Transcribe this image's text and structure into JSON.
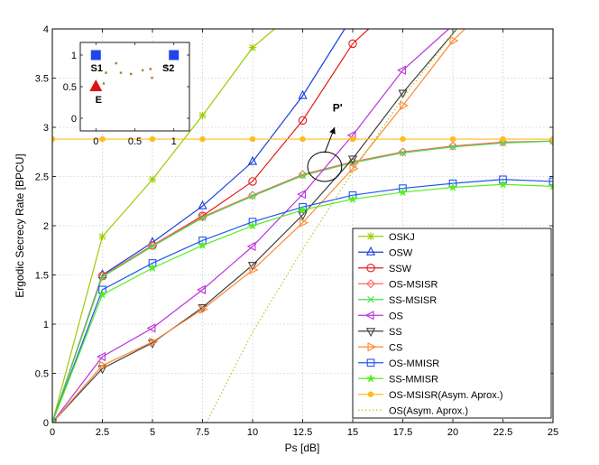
{
  "chart_data": {
    "type": "line",
    "title": "",
    "xlabel": "Ps [dB]",
    "ylabel": "Ergodic Secrecy Rate [BPCU]",
    "xlim": [
      0,
      25
    ],
    "ylim": [
      0,
      4
    ],
    "grid": true,
    "legend_position": "bottom-right",
    "xticks": [
      0,
      2.5,
      5,
      7.5,
      10,
      12.5,
      15,
      17.5,
      20,
      22.5,
      25
    ],
    "xtick_labels": [
      "0",
      "2.5",
      "5",
      "7.5",
      "10",
      "12.5",
      "15",
      "17.5",
      "20",
      "22.5",
      "25"
    ],
    "yticks": [
      0,
      0.5,
      1,
      1.5,
      2,
      2.5,
      3,
      3.5,
      4
    ],
    "ytick_labels": [
      "0",
      "0.5",
      "1",
      "1.5",
      "2",
      "2.5",
      "3",
      "3.5",
      "4"
    ],
    "series": [
      {
        "name": "OSKJ",
        "color": "#99cc00",
        "marker": "asterisk",
        "x": [
          0,
          2.5,
          5,
          7.5,
          10,
          11.1
        ],
        "y": [
          0,
          1.89,
          2.47,
          3.12,
          3.81,
          4.0
        ]
      },
      {
        "name": "OSW",
        "color": "#1a3fd9",
        "marker": "triangle-up",
        "x": [
          0,
          2.5,
          5,
          7.5,
          10,
          12.5,
          14.6
        ],
        "y": [
          0,
          1.5,
          1.83,
          2.2,
          2.65,
          3.32,
          4.0
        ]
      },
      {
        "name": "SSW",
        "color": "#e31a1a",
        "marker": "circle",
        "x": [
          0,
          2.5,
          5,
          7.5,
          10,
          12.5,
          15,
          15.8
        ],
        "y": [
          0,
          1.49,
          1.8,
          2.1,
          2.45,
          3.07,
          3.85,
          4.0
        ]
      },
      {
        "name": "OS-MSISR",
        "color": "#ff6666",
        "marker": "diamond",
        "x": [
          0,
          2.5,
          5,
          7.5,
          10,
          12.5,
          15,
          17.5,
          20,
          22.5,
          25
        ],
        "y": [
          0,
          1.49,
          1.8,
          2.09,
          2.31,
          2.52,
          2.65,
          2.75,
          2.81,
          2.85,
          2.86
        ]
      },
      {
        "name": "SS-MSISR",
        "color": "#44dd44",
        "marker": "x",
        "x": [
          0,
          2.5,
          5,
          7.5,
          10,
          12.5,
          15,
          17.5,
          20,
          22.5,
          25
        ],
        "y": [
          0,
          1.48,
          1.79,
          2.08,
          2.3,
          2.51,
          2.64,
          2.74,
          2.8,
          2.84,
          2.86
        ]
      },
      {
        "name": "OS",
        "color": "#bb33dd",
        "marker": "triangle-left",
        "x": [
          0,
          2.5,
          5,
          7.5,
          10,
          12.5,
          15,
          17.5,
          19.8
        ],
        "y": [
          0,
          0.67,
          0.96,
          1.35,
          1.79,
          2.32,
          2.92,
          3.58,
          4.0
        ]
      },
      {
        "name": "SS",
        "color": "#404040",
        "marker": "triangle-down",
        "x": [
          0,
          2.5,
          5,
          7.5,
          10,
          12.5,
          15,
          17.5,
          20.2
        ],
        "y": [
          0,
          0.55,
          0.81,
          1.17,
          1.6,
          2.11,
          2.68,
          3.35,
          4.0
        ]
      },
      {
        "name": "CS",
        "color": "#ff8833",
        "marker": "triangle-right",
        "x": [
          0,
          2.5,
          5,
          7.5,
          10,
          12.5,
          15,
          17.5,
          20,
          20.6
        ],
        "y": [
          0,
          0.58,
          0.82,
          1.15,
          1.55,
          2.03,
          2.58,
          3.22,
          3.88,
          4.0
        ]
      },
      {
        "name": "OS-MMISR",
        "color": "#2255ee",
        "marker": "square",
        "x": [
          0,
          2.5,
          5,
          7.5,
          10,
          12.5,
          15,
          17.5,
          20,
          22.5,
          25
        ],
        "y": [
          0,
          1.35,
          1.62,
          1.85,
          2.04,
          2.19,
          2.31,
          2.38,
          2.43,
          2.47,
          2.45
        ]
      },
      {
        "name": "SS-MMISR",
        "color": "#55ee22",
        "marker": "star",
        "x": [
          0,
          2.5,
          5,
          7.5,
          10,
          12.5,
          15,
          17.5,
          20,
          22.5,
          25
        ],
        "y": [
          0,
          1.3,
          1.57,
          1.8,
          2.0,
          2.16,
          2.27,
          2.34,
          2.39,
          2.42,
          2.4
        ]
      },
      {
        "name": "OS-MSISR(Asym. Aprox.)",
        "color": "#ffbb22",
        "marker": "dot",
        "x": [
          0,
          2.5,
          5,
          7.5,
          10,
          12.5,
          15,
          17.5,
          20,
          22.5,
          25
        ],
        "y": [
          2.88,
          2.88,
          2.88,
          2.88,
          2.88,
          2.88,
          2.88,
          2.88,
          2.88,
          2.88,
          2.88
        ]
      },
      {
        "name": "OS(Asym. Aprox.)",
        "color": "#aacc22",
        "marker": "none",
        "dash": "dotted",
        "x": [
          7.7,
          10,
          12.5,
          15,
          17.5,
          20.2
        ],
        "y": [
          0,
          0.92,
          1.76,
          2.55,
          3.3,
          4.0
        ]
      }
    ],
    "annotations": [
      {
        "text": "P'",
        "x": 14.0,
        "y": 3.16
      },
      {
        "type": "ellipse",
        "x": 13.6,
        "y": 2.6,
        "rx": 0.85,
        "ry": 0.15
      },
      {
        "type": "arrow",
        "from": [
          13.6,
          2.74
        ],
        "to": [
          14.1,
          3.0
        ]
      }
    ],
    "inset": {
      "xlim": [
        -0.2,
        1.2
      ],
      "ylim": [
        -0.2,
        1.2
      ],
      "xticks": [
        0,
        0.5,
        1
      ],
      "xtick_labels": [
        "0",
        "0.5",
        "1"
      ],
      "yticks": [
        0,
        0.5,
        1
      ],
      "ytick_labels": [
        "0",
        "0.5",
        "1"
      ],
      "nodes": [
        {
          "label": "S1",
          "x": 0,
          "y": 1,
          "marker": "square",
          "color": "#2244ee"
        },
        {
          "label": "S2",
          "x": 1,
          "y": 1,
          "marker": "square",
          "color": "#2244ee"
        },
        {
          "label": "E",
          "x": 0,
          "y": 0.5,
          "marker": "triangle-up",
          "color": "#dd1111"
        }
      ],
      "relays": [
        {
          "x": 0.26,
          "y": 0.87
        },
        {
          "x": 0.1,
          "y": 0.55
        },
        {
          "x": 0.32,
          "y": 0.72
        },
        {
          "x": 0.45,
          "y": 0.7
        },
        {
          "x": 0.6,
          "y": 0.76
        },
        {
          "x": 0.7,
          "y": 0.78
        },
        {
          "x": 0.72,
          "y": 0.64
        },
        {
          "x": 0.9,
          "y": 0.82
        },
        {
          "x": 0.13,
          "y": 0.72
        }
      ],
      "relay_color": "#a67c2e"
    }
  }
}
